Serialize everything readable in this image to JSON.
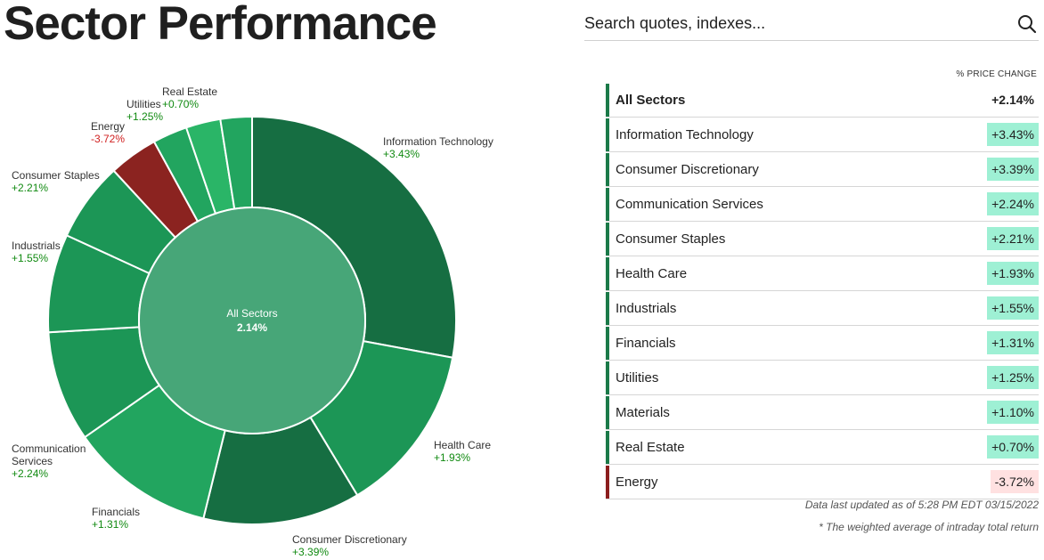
{
  "page": {
    "title": "Sector Performance"
  },
  "search": {
    "placeholder": "Search quotes, indexes..."
  },
  "chart_data": {
    "type": "sunburst",
    "center": {
      "label": "All Sectors",
      "value": "2.14%"
    },
    "series": [
      {
        "name": "Information Technology",
        "weight": 28,
        "change": "+3.43%",
        "color": "#166e42"
      },
      {
        "name": "Health Care",
        "weight": 13.5,
        "change": "+1.93%",
        "color": "#1c9656"
      },
      {
        "name": "Consumer Discretionary",
        "weight": 12.5,
        "change": "+3.39%",
        "color": "#166e42"
      },
      {
        "name": "Financials",
        "weight": 11.5,
        "change": "+1.31%",
        "color": "#22a55f"
      },
      {
        "name": "Communication Services",
        "weight": 8.8,
        "change": "+2.24%",
        "color": "#1c9656"
      },
      {
        "name": "Industrials",
        "weight": 7.8,
        "change": "+1.55%",
        "color": "#1c9656"
      },
      {
        "name": "Consumer Staples",
        "weight": 6.3,
        "change": "+2.21%",
        "color": "#1c9656"
      },
      {
        "name": "Energy",
        "weight": 3.9,
        "change": "-3.72%",
        "color": "#8b2320"
      },
      {
        "name": "Utilities",
        "weight": 2.75,
        "change": "+1.25%",
        "color": "#22a55f"
      },
      {
        "name": "Real Estate",
        "weight": 2.75,
        "change": "+0.70%",
        "color": "#2ab567"
      },
      {
        "name": "Materials",
        "weight": 2.5,
        "change": "+1.10%",
        "color": "#22a55f"
      }
    ]
  },
  "table": {
    "header": "% PRICE CHANGE",
    "rows": [
      {
        "name": "All Sectors",
        "value": "+2.14%",
        "total": true,
        "negative": false
      },
      {
        "name": "Information Technology",
        "value": "+3.43%",
        "negative": false
      },
      {
        "name": "Consumer Discretionary",
        "value": "+3.39%",
        "negative": false
      },
      {
        "name": "Communication Services",
        "value": "+2.24%",
        "negative": false
      },
      {
        "name": "Consumer Staples",
        "value": "+2.21%",
        "negative": false
      },
      {
        "name": "Health Care",
        "value": "+1.93%",
        "negative": false
      },
      {
        "name": "Industrials",
        "value": "+1.55%",
        "negative": false
      },
      {
        "name": "Financials",
        "value": "+1.31%",
        "negative": false
      },
      {
        "name": "Utilities",
        "value": "+1.25%",
        "negative": false
      },
      {
        "name": "Materials",
        "value": "+1.10%",
        "negative": false
      },
      {
        "name": "Real Estate",
        "value": "+0.70%",
        "negative": false
      },
      {
        "name": "Energy",
        "value": "-3.72%",
        "negative": true
      }
    ]
  },
  "footnotes": {
    "updated": "Data last updated as of 5:28 PM EDT 03/15/2022",
    "note": "* The weighted average of intraday total return"
  },
  "colors": {
    "positive_bar": "#1b7a49",
    "negative_bar": "#8b1e1e",
    "positive_cell": "#9ef0d4",
    "negative_cell": "#ffe1e1",
    "center_fill": "#47a678"
  },
  "icons": {
    "search": "search-icon"
  }
}
